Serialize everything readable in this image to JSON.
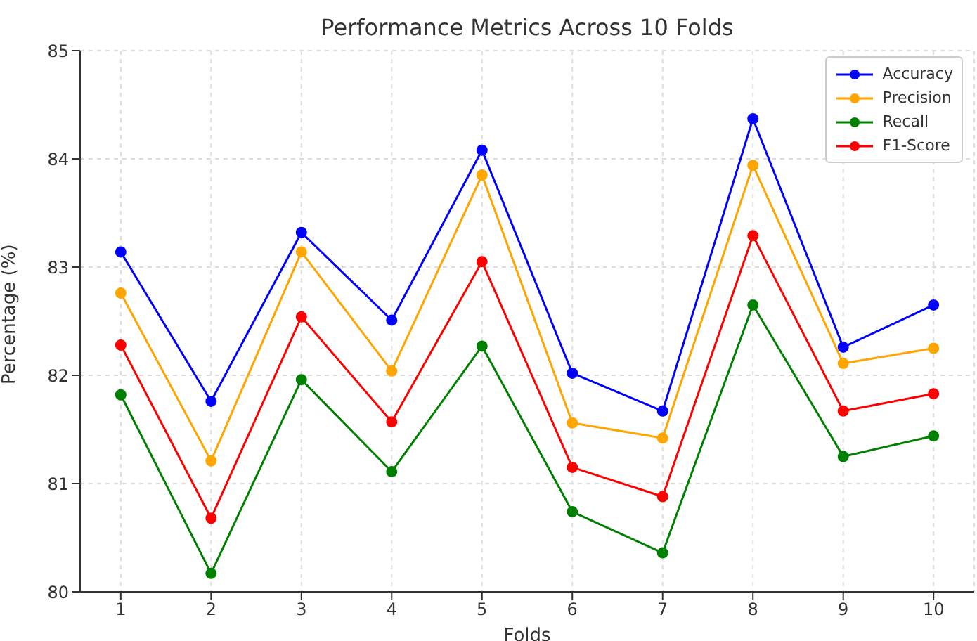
{
  "chart_data": {
    "type": "line",
    "title": "Performance Metrics Across 10 Folds",
    "xlabel": "Folds",
    "ylabel": "Percentage (%)",
    "x": [
      1,
      2,
      3,
      4,
      5,
      6,
      7,
      8,
      9,
      10
    ],
    "series": [
      {
        "name": "Accuracy",
        "color": "#0000ff",
        "values": [
          83.14,
          81.76,
          83.32,
          82.51,
          84.08,
          82.02,
          81.67,
          84.37,
          82.26,
          82.65
        ]
      },
      {
        "name": "Precision",
        "color": "#ffa500",
        "values": [
          82.76,
          81.21,
          83.14,
          82.04,
          83.85,
          81.56,
          81.42,
          83.94,
          82.11,
          82.25
        ]
      },
      {
        "name": "Recall",
        "color": "#008000",
        "values": [
          81.82,
          80.17,
          81.96,
          81.11,
          82.27,
          80.74,
          80.36,
          82.65,
          81.25,
          81.44
        ]
      },
      {
        "name": "F1-Score",
        "color": "#ff0000",
        "values": [
          82.28,
          80.68,
          82.54,
          81.57,
          83.05,
          81.15,
          80.88,
          83.29,
          81.67,
          81.83
        ]
      }
    ],
    "xlim": [
      0.55,
      10.45
    ],
    "xticks": [
      1,
      2,
      3,
      4,
      5,
      6,
      7,
      8,
      9,
      10
    ],
    "ylim": [
      80,
      85
    ],
    "yticks": [
      80,
      81,
      82,
      83,
      84,
      85
    ],
    "grid": true,
    "legend": "top right",
    "marker": "circle",
    "line_style": "solid"
  }
}
